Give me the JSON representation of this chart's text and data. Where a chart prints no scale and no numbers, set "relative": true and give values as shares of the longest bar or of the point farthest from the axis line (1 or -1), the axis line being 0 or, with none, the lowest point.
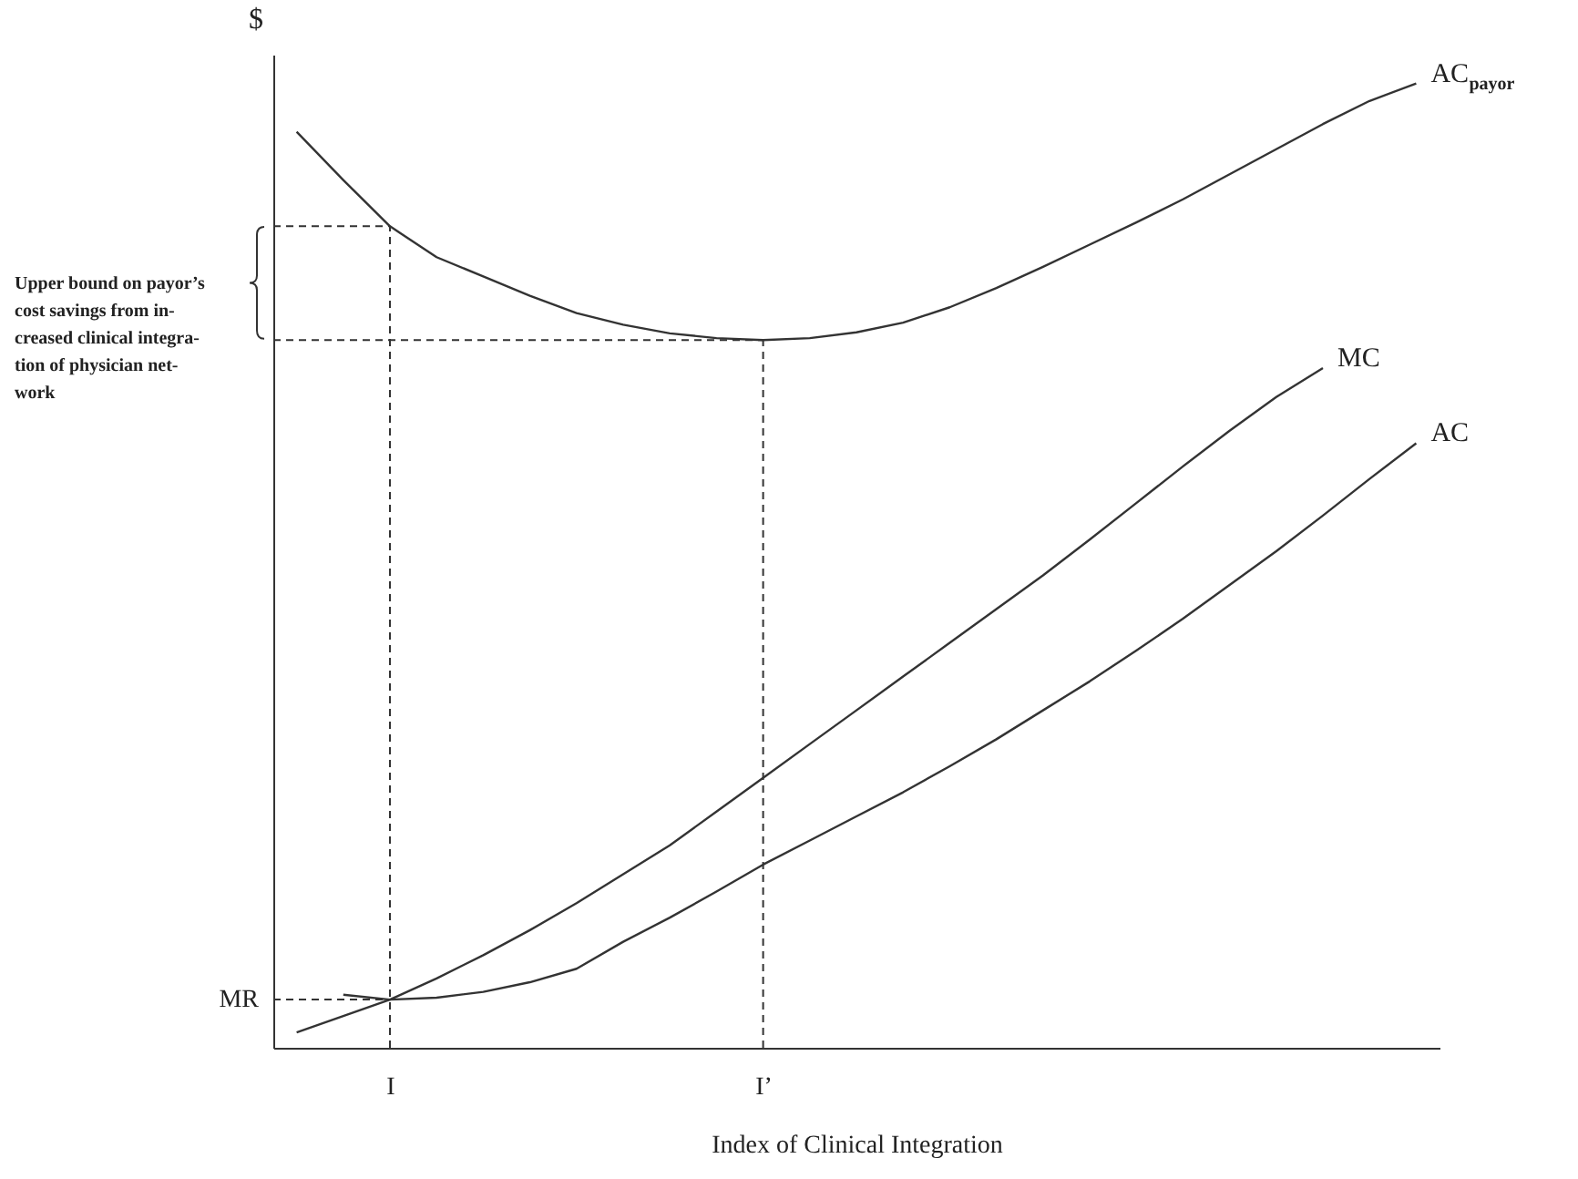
{
  "chart_data": {
    "type": "line",
    "relative": true,
    "xlabel": "Index of Clinical Integration",
    "ylabel": "$",
    "categories": [
      null,
      null,
      "I",
      null,
      null,
      null,
      null,
      null,
      null,
      null,
      "I’",
      null,
      null,
      null,
      null,
      null,
      null,
      null,
      null,
      null,
      null,
      null,
      null,
      null,
      null
    ],
    "series": [
      {
        "name": "AC$_{payor}$",
        "color": "#333333",
        "values": [
          0.95,
          0.9,
          0.852,
          0.82,
          0.8,
          0.78,
          0.762,
          0.75,
          0.741,
          0.736,
          0.734,
          0.736,
          0.742,
          0.752,
          0.768,
          0.788,
          0.81,
          0.833,
          0.856,
          0.88,
          0.906,
          0.932,
          0.958,
          0.982,
          1.0
        ]
      },
      {
        "name": "MC",
        "color": "#333333",
        "values": [
          0.016,
          0.033,
          0.05,
          0.072,
          0.096,
          0.122,
          0.15,
          0.18,
          0.21,
          0.245,
          0.28,
          0.315,
          0.35,
          0.385,
          0.42,
          0.455,
          0.49,
          0.527,
          0.565,
          0.603,
          0.64,
          0.675,
          0.705,
          null,
          null
        ]
      },
      {
        "name": "AC",
        "color": "#333333",
        "values": [
          null,
          0.055,
          0.05,
          0.052,
          0.058,
          0.068,
          0.082,
          0.11,
          0.135,
          0.162,
          0.19,
          0.215,
          0.24,
          0.265,
          0.292,
          0.32,
          0.35,
          0.38,
          0.412,
          0.445,
          0.48,
          0.515,
          0.552,
          0.59,
          0.627
        ]
      }
    ],
    "ref_lines": [
      {
        "axis": "x",
        "value": "I",
        "line_style": "dashed"
      },
      {
        "axis": "x",
        "value": "I’",
        "line_style": "dashed"
      },
      {
        "axis": "y",
        "value": 0.05,
        "label": "MR",
        "line_style": "dashed"
      },
      {
        "axis": "y",
        "value": 0.852,
        "line_style": "dashed"
      },
      {
        "axis": "y",
        "value": 0.734,
        "line_style": "dashed"
      }
    ],
    "annotations": [
      "Upper bound on payor’s\ncost savings from in-\ncreased clinical  integra-\ntion of physician net-\nwork"
    ]
  }
}
